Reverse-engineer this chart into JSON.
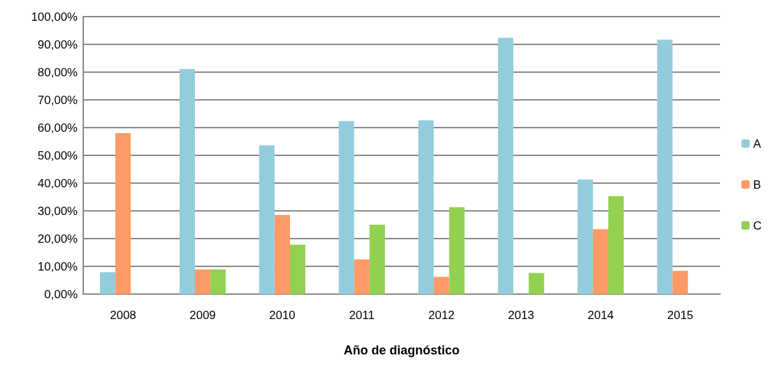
{
  "chart_data": {
    "type": "bar",
    "xlabel": "Año de diagnóstico",
    "categories": [
      "2008",
      "2009",
      "2010",
      "2011",
      "2012",
      "2013",
      "2014",
      "2015"
    ],
    "series": [
      {
        "name": "A",
        "color": "#93cddd",
        "values": [
          7.9,
          81.1,
          53.6,
          62.4,
          62.6,
          92.4,
          41.3,
          91.7
        ]
      },
      {
        "name": "B",
        "color": "#fd9b66",
        "values": [
          58.0,
          8.9,
          28.5,
          12.5,
          6.2,
          null,
          23.4,
          8.4
        ]
      },
      {
        "name": "C",
        "color": "#92d050",
        "values": [
          null,
          8.9,
          17.8,
          25.0,
          31.3,
          7.6,
          35.3,
          null
        ]
      }
    ],
    "ylim": [
      0,
      100
    ],
    "yticks": [
      {
        "value": 0,
        "label": "0,00%"
      },
      {
        "value": 10,
        "label": "10,00%"
      },
      {
        "value": 20,
        "label": "20,00%"
      },
      {
        "value": 30,
        "label": "30,00%"
      },
      {
        "value": 40,
        "label": "40,00%"
      },
      {
        "value": 50,
        "label": "50,00%"
      },
      {
        "value": 60,
        "label": "60,00%"
      },
      {
        "value": 70,
        "label": "70,00%"
      },
      {
        "value": 80,
        "label": "80,00%"
      },
      {
        "value": 90,
        "label": "90,00%"
      },
      {
        "value": 100,
        "label": "100,00%"
      }
    ],
    "grid": "y",
    "legend": "right"
  }
}
